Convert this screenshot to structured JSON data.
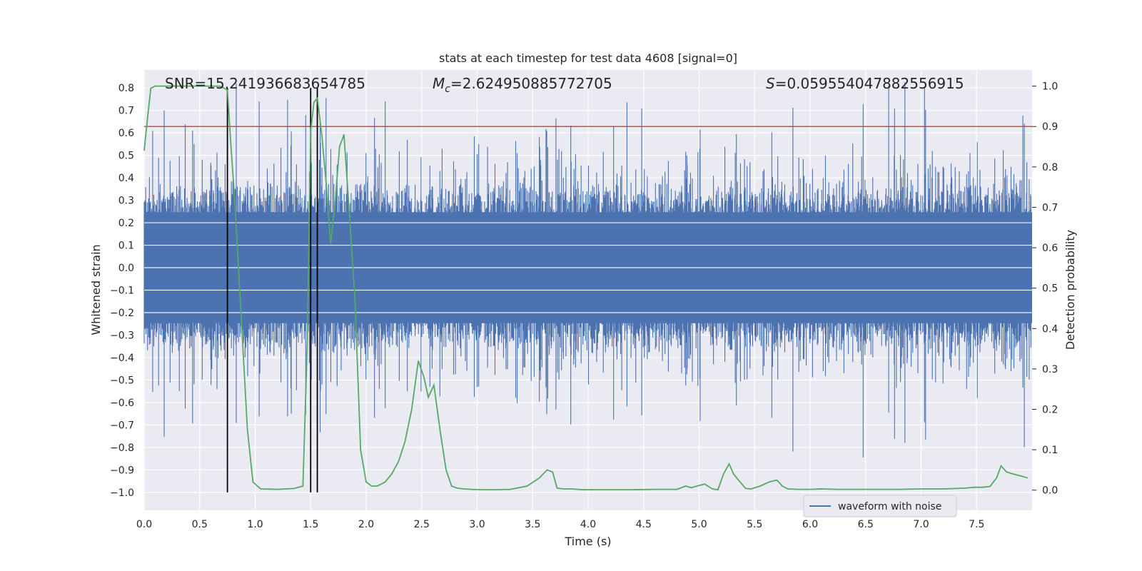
{
  "chart_data": {
    "type": "line",
    "title": "stats at each timestep for test data 4608 [signal=0]",
    "xlabel": "Time (s)",
    "ylabel_left": "Whitened strain",
    "ylabel_right": "Detection probability",
    "xlim": [
      0,
      8.0
    ],
    "ylim_left": [
      -1.08,
      0.88
    ],
    "ylim_right": [
      -0.05,
      1.04
    ],
    "x_ticks": [
      0.0,
      0.5,
      1.0,
      1.5,
      2.0,
      2.5,
      3.0,
      3.5,
      4.0,
      4.5,
      5.0,
      5.5,
      6.0,
      6.5,
      7.0,
      7.5
    ],
    "x_tick_labels": [
      "0.0",
      "0.5",
      "1.0",
      "1.5",
      "2.0",
      "2.5",
      "3.0",
      "3.5",
      "4.0",
      "4.5",
      "5.0",
      "5.5",
      "6.0",
      "6.5",
      "7.0",
      "7.5"
    ],
    "y_left_ticks": [
      0.8,
      0.7,
      0.6,
      0.5,
      0.4,
      0.3,
      0.2,
      0.1,
      0.0,
      -0.1,
      -0.2,
      -0.3,
      -0.4,
      -0.5,
      -0.6,
      -0.7,
      -0.8,
      -0.9,
      -1.0
    ],
    "y_left_tick_labels": [
      "0.8",
      "0.7",
      "0.6",
      "0.5",
      "0.4",
      "0.3",
      "0.2",
      "0.1",
      "0.0",
      "−0.1",
      "−0.2",
      "−0.3",
      "−0.4",
      "−0.5",
      "−0.6",
      "−0.7",
      "−0.8",
      "−0.9",
      "−1.0"
    ],
    "y_right_ticks": [
      1.0,
      0.9,
      0.8,
      0.7,
      0.6,
      0.5,
      0.4,
      0.3,
      0.2,
      0.1,
      0.0
    ],
    "y_right_tick_labels": [
      "1.0",
      "0.9",
      "0.8",
      "0.7",
      "0.6",
      "0.5",
      "0.4",
      "0.3",
      "0.2",
      "0.1",
      "0.0"
    ],
    "annotations": {
      "snr": "SNR=15.241936683654785",
      "mc_symbol": "M",
      "mc_sub": "c",
      "mc_value": "=2.624950885772705",
      "s_symbol": "S",
      "s_value": "=0.059554047882556915"
    },
    "threshold": 0.9,
    "vertical_markers": [
      0.75,
      1.5,
      1.56
    ],
    "grid": true,
    "legend_position": "lower-right",
    "series": [
      {
        "name": "waveform with noise",
        "axis": "left",
        "color": "#4c72b0",
        "envelope_typical": 0.26,
        "envelope_peak": 0.8
      },
      {
        "axis": "right",
        "color": "#55a868",
        "x": [
          0.0,
          0.03,
          0.06,
          0.1,
          0.2,
          0.3,
          0.4,
          0.5,
          0.6,
          0.68,
          0.72,
          0.75,
          0.78,
          0.82,
          0.87,
          0.93,
          0.98,
          1.05,
          1.2,
          1.35,
          1.43,
          1.47,
          1.5,
          1.53,
          1.56,
          1.6,
          1.64,
          1.68,
          1.72,
          1.76,
          1.8,
          1.85,
          1.9,
          1.95,
          2.0,
          2.05,
          2.1,
          2.17,
          2.23,
          2.29,
          2.35,
          2.41,
          2.47,
          2.52,
          2.56,
          2.61,
          2.67,
          2.72,
          2.77,
          2.82,
          2.88,
          2.95,
          3.05,
          3.15,
          3.3,
          3.45,
          3.56,
          3.63,
          3.68,
          3.72,
          3.78,
          3.85,
          3.95,
          4.05,
          4.2,
          4.4,
          4.6,
          4.8,
          4.88,
          4.93,
          4.98,
          5.05,
          5.12,
          5.17,
          5.22,
          5.27,
          5.31,
          5.37,
          5.42,
          5.47,
          5.55,
          5.63,
          5.7,
          5.75,
          5.8,
          5.9,
          6.0,
          6.1,
          6.25,
          6.4,
          6.6,
          6.8,
          7.0,
          7.2,
          7.4,
          7.48,
          7.55,
          7.62,
          7.68,
          7.72,
          7.77,
          7.83,
          7.9,
          7.96
        ],
        "values": [
          0.84,
          0.92,
          0.995,
          1.0,
          1.0,
          1.0,
          1.0,
          1.0,
          1.0,
          1.0,
          0.995,
          0.99,
          0.86,
          0.7,
          0.45,
          0.15,
          0.02,
          0.003,
          0.002,
          0.004,
          0.01,
          0.37,
          0.89,
          0.96,
          0.97,
          0.88,
          0.76,
          0.61,
          0.71,
          0.85,
          0.88,
          0.68,
          0.47,
          0.1,
          0.02,
          0.01,
          0.01,
          0.02,
          0.04,
          0.07,
          0.12,
          0.2,
          0.32,
          0.28,
          0.23,
          0.26,
          0.14,
          0.05,
          0.01,
          0.005,
          0.003,
          0.002,
          0.001,
          0.001,
          0.002,
          0.01,
          0.03,
          0.05,
          0.045,
          0.005,
          0.003,
          0.003,
          0.001,
          0.001,
          0.001,
          0.001,
          0.002,
          0.002,
          0.01,
          0.006,
          0.01,
          0.015,
          0.003,
          0.001,
          0.04,
          0.065,
          0.04,
          0.02,
          0.004,
          0.003,
          0.01,
          0.02,
          0.025,
          0.01,
          0.003,
          0.002,
          0.002,
          0.003,
          0.002,
          0.002,
          0.002,
          0.002,
          0.003,
          0.003,
          0.005,
          0.007,
          0.007,
          0.009,
          0.03,
          0.06,
          0.045,
          0.04,
          0.035,
          0.03
        ]
      }
    ],
    "colors": {
      "background": "#eaeaf2",
      "grid": "#ffffff",
      "threshold": "#c44e52",
      "marker": "#000000"
    }
  }
}
